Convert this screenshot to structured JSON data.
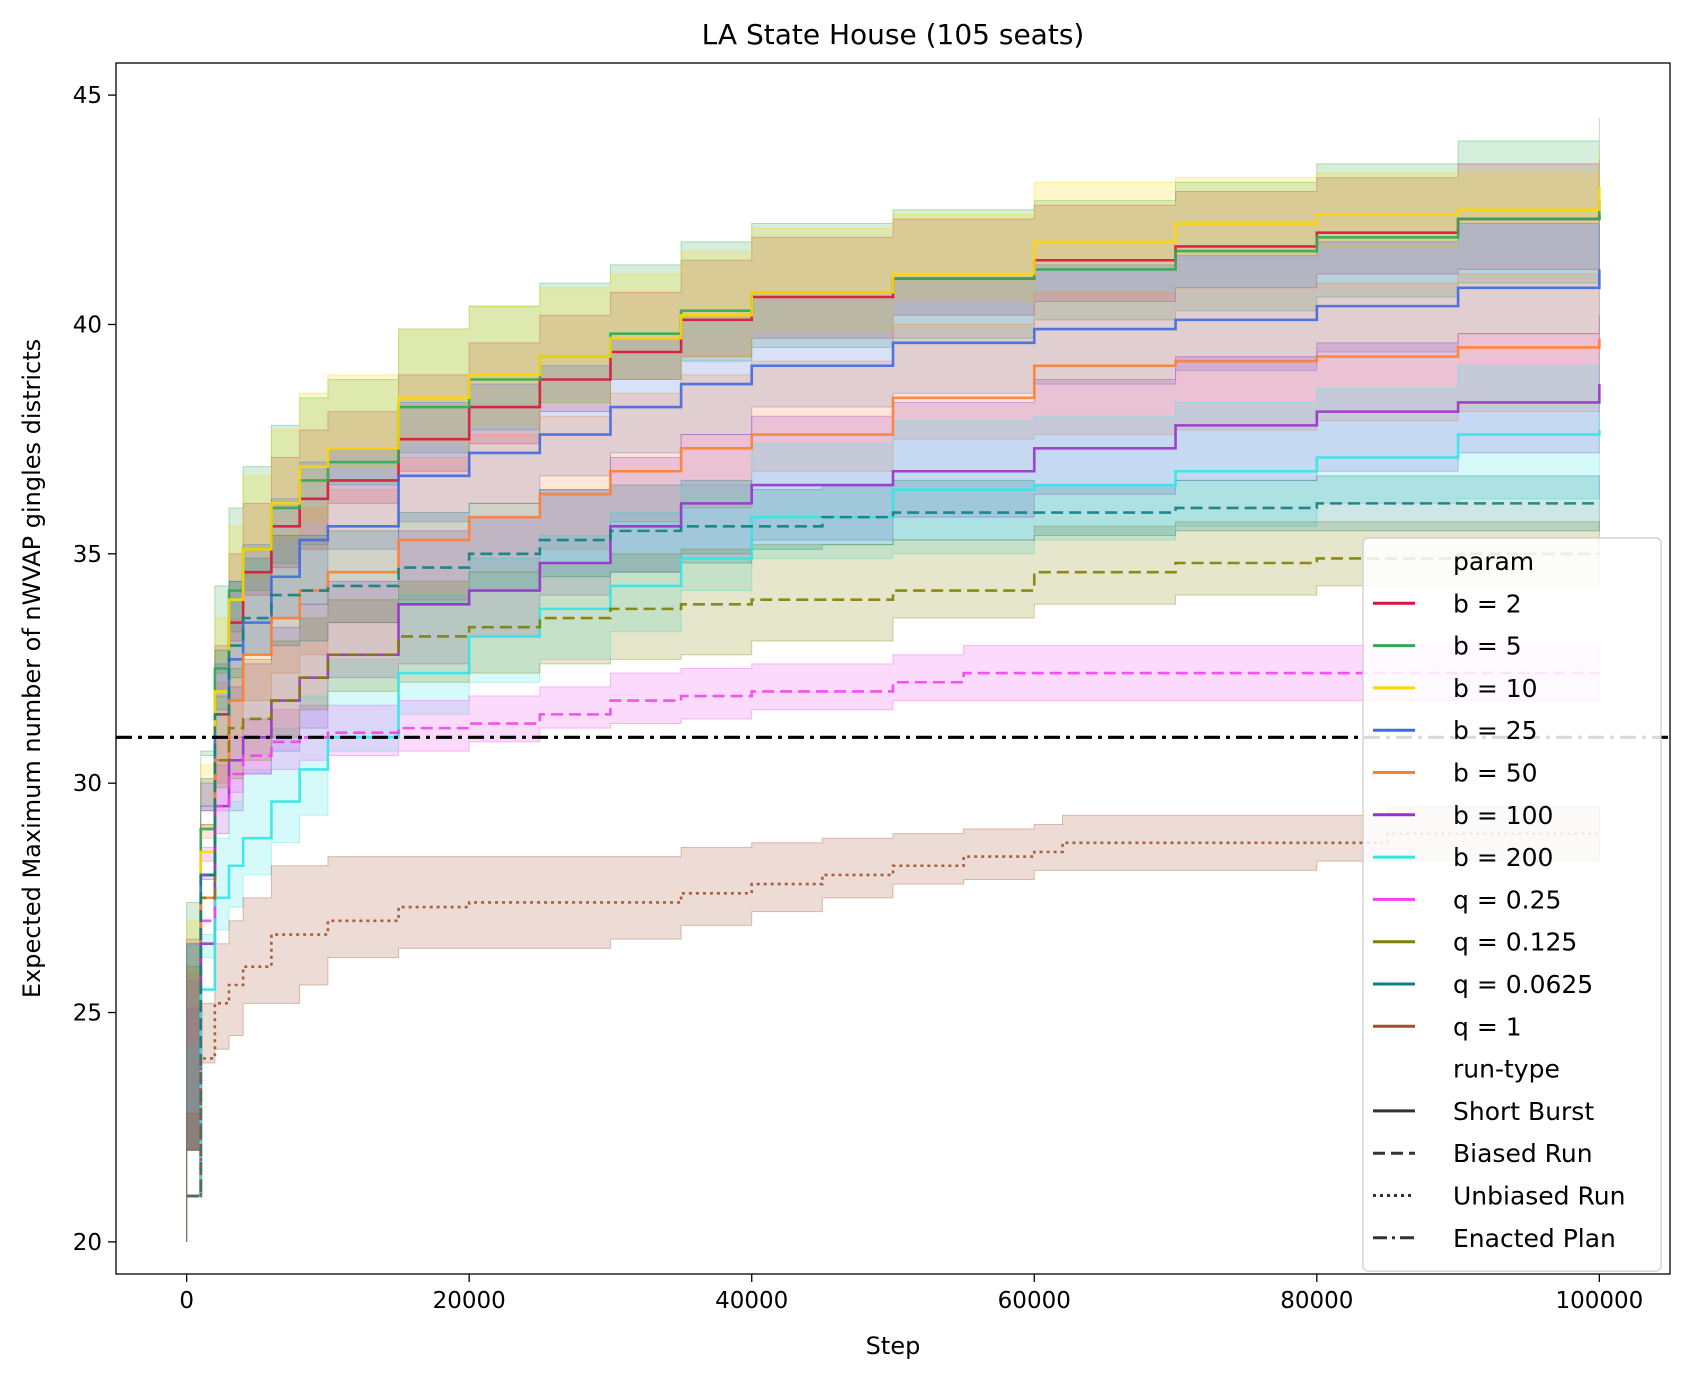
{
  "chart_data": {
    "type": "line",
    "title": "LA State House (105 seats)",
    "xlabel": "Step",
    "ylabel": "Expected Maximum number of nWVAP gingles districts",
    "xlim": [
      -5000,
      105000
    ],
    "ylim": [
      19.3,
      45.7
    ],
    "xticks": [
      0,
      20000,
      40000,
      60000,
      80000,
      100000
    ],
    "yticks": [
      20,
      25,
      30,
      35,
      40,
      45
    ],
    "grid": false,
    "legend_position": "right",
    "legend": {
      "param_title": "param",
      "runtype_title": "run-type",
      "run_types": [
        {
          "label": "Short Burst",
          "dash": "solid"
        },
        {
          "label": "Biased Run",
          "dash": "dashed"
        },
        {
          "label": "Unbiased Run",
          "dash": "dotted"
        },
        {
          "label": "Enacted Plan",
          "dash": "dashdot"
        }
      ]
    },
    "reference_line": {
      "name": "Enacted Plan",
      "y": 31,
      "color": "#000000"
    },
    "series": [
      {
        "name": "b = 2",
        "run_type": "Short Burst",
        "color": "#dc143c",
        "x": [
          0,
          1000,
          2000,
          3000,
          4000,
          6000,
          8000,
          10000,
          15000,
          20000,
          25000,
          30000,
          35000,
          40000,
          50000,
          60000,
          70000,
          80000,
          90000,
          100000
        ],
        "y": [
          21,
          28,
          31.5,
          33.5,
          34.6,
          35.6,
          36.2,
          36.6,
          37.5,
          38.2,
          38.8,
          39.4,
          40.1,
          40.6,
          41.0,
          41.4,
          41.7,
          42.0,
          42.3,
          42.4
        ],
        "band": [
          1.0,
          1.4,
          1.5,
          1.5,
          1.5,
          1.5,
          1.5,
          1.5,
          1.4,
          1.4,
          1.4,
          1.3,
          1.3,
          1.3,
          1.3,
          1.2,
          1.2,
          1.2,
          1.2,
          1.2
        ]
      },
      {
        "name": "b = 5",
        "run_type": "Short Burst",
        "color": "#32a852",
        "x": [
          0,
          1000,
          2000,
          3000,
          4000,
          6000,
          8000,
          10000,
          15000,
          20000,
          25000,
          30000,
          35000,
          40000,
          50000,
          60000,
          70000,
          80000,
          90000,
          100000
        ],
        "y": [
          21,
          29,
          32.5,
          34.2,
          35.1,
          36.0,
          36.6,
          37.0,
          38.2,
          38.8,
          39.3,
          39.8,
          40.3,
          40.7,
          41.0,
          41.2,
          41.6,
          41.9,
          42.3,
          42.7
        ],
        "band": [
          1.0,
          1.6,
          1.8,
          1.8,
          1.8,
          1.8,
          1.8,
          1.8,
          1.7,
          1.6,
          1.6,
          1.5,
          1.5,
          1.5,
          1.5,
          1.5,
          1.5,
          1.6,
          1.7,
          1.8
        ]
      },
      {
        "name": "b = 10",
        "run_type": "Short Burst",
        "color": "#ffd700",
        "x": [
          0,
          1000,
          2000,
          3000,
          4000,
          6000,
          8000,
          10000,
          15000,
          20000,
          25000,
          30000,
          35000,
          40000,
          50000,
          60000,
          70000,
          80000,
          90000,
          100000
        ],
        "y": [
          21,
          28.5,
          32,
          34,
          35.1,
          36.1,
          36.9,
          37.3,
          38.4,
          38.9,
          39.3,
          39.7,
          40.2,
          40.7,
          41.1,
          41.8,
          42.2,
          42.4,
          42.5,
          43.0
        ],
        "band": [
          1.0,
          1.5,
          1.6,
          1.6,
          1.6,
          1.6,
          1.6,
          1.6,
          1.5,
          1.5,
          1.5,
          1.4,
          1.4,
          1.4,
          1.3,
          1.3,
          1.0,
          0.9,
          0.8,
          0.8
        ]
      },
      {
        "name": "b = 25",
        "run_type": "Short Burst",
        "color": "#4169e1",
        "x": [
          0,
          1000,
          2000,
          3000,
          4000,
          6000,
          8000,
          10000,
          15000,
          20000,
          25000,
          30000,
          35000,
          40000,
          50000,
          60000,
          70000,
          80000,
          90000,
          100000
        ],
        "y": [
          21,
          28,
          31,
          32.7,
          33.5,
          34.5,
          35.3,
          35.6,
          36.7,
          37.2,
          37.6,
          38.2,
          38.7,
          39.1,
          39.6,
          39.9,
          40.1,
          40.4,
          40.8,
          41.2
        ],
        "band": [
          1.0,
          1.5,
          1.6,
          1.7,
          1.7,
          1.7,
          1.7,
          1.7,
          1.6,
          1.5,
          1.5,
          1.5,
          1.5,
          1.5,
          1.4,
          1.4,
          1.4,
          1.4,
          1.4,
          1.4
        ]
      },
      {
        "name": "b = 50",
        "run_type": "Short Burst",
        "color": "#ff8033",
        "x": [
          0,
          1000,
          2000,
          3000,
          4000,
          6000,
          8000,
          10000,
          15000,
          20000,
          25000,
          30000,
          35000,
          40000,
          50000,
          60000,
          70000,
          80000,
          90000,
          100000
        ],
        "y": [
          21,
          27.5,
          30.5,
          31.8,
          32.8,
          33.6,
          34.2,
          34.6,
          35.3,
          35.8,
          36.3,
          36.8,
          37.3,
          37.6,
          38.4,
          39.1,
          39.2,
          39.3,
          39.5,
          39.7
        ],
        "band": [
          1.0,
          1.6,
          1.7,
          1.8,
          1.8,
          1.8,
          1.8,
          1.8,
          1.8,
          1.8,
          1.7,
          1.7,
          1.6,
          1.6,
          1.6,
          1.6,
          1.6,
          1.6,
          1.6,
          1.6
        ]
      },
      {
        "name": "b = 100",
        "run_type": "Short Burst",
        "color": "#9932cc",
        "x": [
          0,
          1000,
          2000,
          3000,
          4000,
          6000,
          8000,
          10000,
          15000,
          20000,
          25000,
          30000,
          35000,
          40000,
          50000,
          60000,
          70000,
          80000,
          90000,
          100000
        ],
        "y": [
          21,
          26.5,
          29.5,
          30.5,
          31.0,
          31.8,
          32.3,
          32.8,
          33.9,
          34.2,
          34.8,
          35.6,
          36.1,
          36.5,
          36.8,
          37.3,
          37.8,
          38.1,
          38.3,
          38.7
        ],
        "band": [
          1.0,
          1.4,
          1.5,
          1.6,
          1.6,
          1.6,
          1.6,
          1.6,
          1.6,
          1.6,
          1.6,
          1.5,
          1.5,
          1.5,
          1.5,
          1.5,
          1.5,
          1.5,
          1.5,
          1.5
        ]
      },
      {
        "name": "b = 200",
        "run_type": "Short Burst",
        "color": "#33e6e6",
        "x": [
          0,
          1000,
          2000,
          3000,
          4000,
          6000,
          8000,
          10000,
          15000,
          20000,
          25000,
          30000,
          35000,
          40000,
          50000,
          60000,
          70000,
          80000,
          90000,
          100000
        ],
        "y": [
          21,
          25.5,
          27.5,
          28.2,
          28.8,
          29.6,
          30.3,
          31.0,
          32.4,
          33.2,
          33.8,
          34.3,
          34.9,
          35.8,
          36.4,
          36.5,
          36.8,
          37.1,
          37.6,
          37.7
        ],
        "band": [
          1.0,
          1.2,
          1.3,
          1.4,
          1.5,
          1.6,
          1.6,
          1.7,
          1.7,
          1.7,
          1.6,
          1.6,
          1.6,
          1.6,
          1.5,
          1.5,
          1.5,
          1.5,
          1.5,
          1.5
        ]
      },
      {
        "name": "q = 0.25",
        "run_type": "Biased Run",
        "color": "#ee44ee",
        "x": [
          0,
          1000,
          2000,
          3000,
          4000,
          6000,
          8000,
          10000,
          15000,
          20000,
          25000,
          30000,
          35000,
          40000,
          50000,
          55000,
          60000,
          70000,
          80000,
          90000,
          100000
        ],
        "y": [
          21,
          27,
          29.5,
          30.2,
          30.6,
          30.9,
          31.0,
          31.1,
          31.2,
          31.3,
          31.5,
          31.8,
          31.9,
          32.0,
          32.2,
          32.4,
          32.4,
          32.4,
          32.4,
          32.4,
          32.4
        ],
        "band": [
          1.0,
          1.3,
          0.9,
          0.8,
          0.8,
          0.7,
          0.7,
          0.6,
          0.6,
          0.6,
          0.6,
          0.6,
          0.6,
          0.6,
          0.6,
          0.6,
          0.6,
          0.6,
          0.6,
          0.6,
          0.6
        ]
      },
      {
        "name": "q = 0.125",
        "run_type": "Biased Run",
        "color": "#808000",
        "x": [
          0,
          1000,
          2000,
          3000,
          4000,
          6000,
          8000,
          10000,
          15000,
          20000,
          25000,
          30000,
          35000,
          40000,
          50000,
          60000,
          70000,
          80000,
          90000,
          100000
        ],
        "y": [
          21,
          27.5,
          30.5,
          31.2,
          31.4,
          31.8,
          32.3,
          32.8,
          33.2,
          33.4,
          33.6,
          33.8,
          33.9,
          34.0,
          34.2,
          34.6,
          34.8,
          34.9,
          35.0,
          35.0
        ],
        "band": [
          1.0,
          1.5,
          1.4,
          1.3,
          1.3,
          1.3,
          1.3,
          1.2,
          1.2,
          1.2,
          1.2,
          1.2,
          1.2,
          1.2,
          1.1,
          1.0,
          0.9,
          0.8,
          0.7,
          0.7
        ]
      },
      {
        "name": "q = 0.0625",
        "run_type": "Biased Run",
        "color": "#108080",
        "x": [
          0,
          1000,
          2000,
          3000,
          4000,
          6000,
          8000,
          10000,
          15000,
          20000,
          25000,
          30000,
          35000,
          40000,
          45000,
          50000,
          60000,
          70000,
          80000,
          90000,
          100000
        ],
        "y": [
          21,
          28,
          31.5,
          33.0,
          33.6,
          34.1,
          34.2,
          34.3,
          34.7,
          35.0,
          35.3,
          35.5,
          35.6,
          35.6,
          35.8,
          35.9,
          35.9,
          36.0,
          36.1,
          36.1,
          36.1
        ],
        "band": [
          1.0,
          1.5,
          1.4,
          1.4,
          1.3,
          1.3,
          1.2,
          1.2,
          1.2,
          1.1,
          1.1,
          1.0,
          1.0,
          0.8,
          0.7,
          0.7,
          0.6,
          0.6,
          0.6,
          0.6,
          0.6
        ]
      },
      {
        "name": "q = 1",
        "run_type": "Unbiased Run",
        "color": "#a0522d",
        "x": [
          0,
          1000,
          2000,
          3000,
          4000,
          6000,
          8000,
          10000,
          15000,
          20000,
          25000,
          30000,
          35000,
          40000,
          45000,
          50000,
          55000,
          60000,
          62000,
          65000,
          70000,
          80000,
          85000,
          90000,
          100000
        ],
        "y": [
          21,
          24,
          25.2,
          25.6,
          26.0,
          26.7,
          26.7,
          27.0,
          27.3,
          27.4,
          27.4,
          27.4,
          27.6,
          27.8,
          28.0,
          28.2,
          28.4,
          28.5,
          28.7,
          28.7,
          28.7,
          28.7,
          28.9,
          28.9,
          28.9
        ],
        "band": [
          1.0,
          1.2,
          1.3,
          1.4,
          1.5,
          1.5,
          1.5,
          1.4,
          1.1,
          1.0,
          1.0,
          1.0,
          1.0,
          0.9,
          0.8,
          0.7,
          0.6,
          0.6,
          0.6,
          0.6,
          0.6,
          0.6,
          0.6,
          0.6,
          0.6
        ]
      }
    ]
  }
}
